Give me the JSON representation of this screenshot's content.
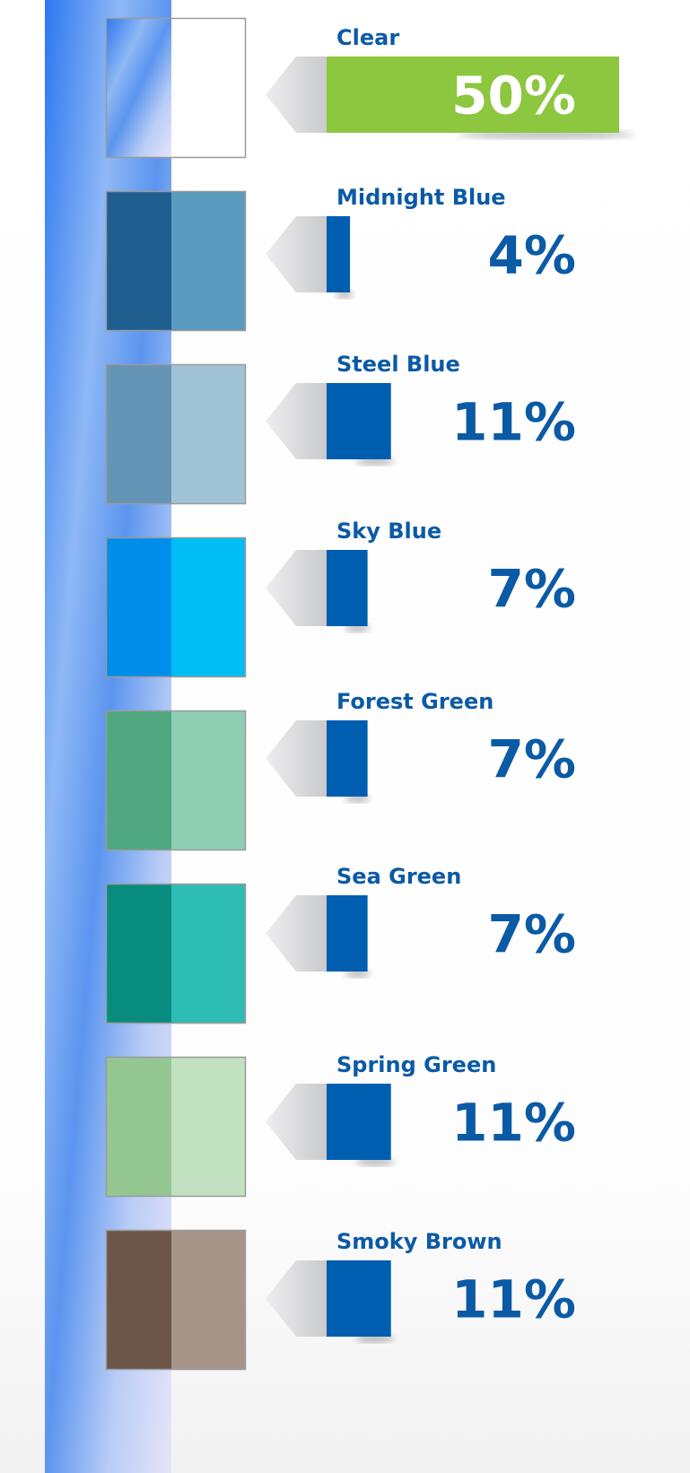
{
  "chart_data": {
    "type": "bar",
    "categories": [
      "Clear",
      "Midnight Blue",
      "Steel Blue",
      "Sky Blue",
      "Forest Green",
      "Sea Green",
      "Spring Green",
      "Smoky Brown"
    ],
    "values": [
      50,
      4,
      11,
      7,
      7,
      7,
      11,
      11
    ],
    "value_labels": [
      "50%",
      "4%",
      "11%",
      "7%",
      "7%",
      "7%",
      "11%",
      "11%"
    ],
    "colors": [
      "#8dc63f",
      "#005eb0",
      "#005eb0",
      "#005eb0",
      "#005eb0",
      "#005eb0",
      "#005eb0",
      "#005eb0"
    ],
    "swatch_colors": [
      "#ffffff",
      "#5a9bc0",
      "#a0c3d8",
      "#00bef5",
      "#8ecfb4",
      "#2ebdb5",
      "#c2e1c1",
      "#a69489"
    ]
  }
}
